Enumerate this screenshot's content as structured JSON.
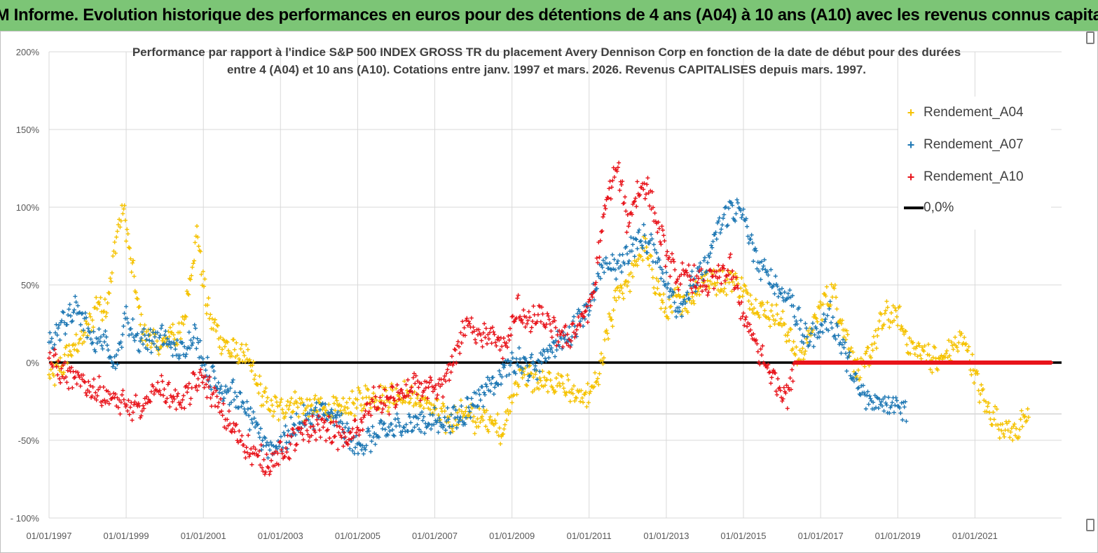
{
  "banner": {
    "title": "ADAM Informe. Evolution historique des performances en euros pour des détentions de 4 ans (A04) à 10 ans (A10) avec les revenus connus capitalisés"
  },
  "chart_data": {
    "type": "scatter",
    "title_line1": "Performance par rapport à l'indice S&P 500 INDEX GROSS TR  du placement Avery Dennison Corp en fonction de la date de début pour des durées",
    "title_line2": "entre 4 (A04) et 10 ans (A10). Cotations entre janv. 1997 et mars. 2026. Revenus CAPITALISES depuis mars. 1997.",
    "x_axis": {
      "type": "date",
      "range": [
        "1997-01-01",
        "2023-04-01"
      ],
      "tick_labels": [
        "01/01/1997",
        "01/01/1999",
        "01/01/2001",
        "01/01/2003",
        "01/01/2005",
        "01/01/2007",
        "01/01/2009",
        "01/01/2011",
        "01/01/2013",
        "01/01/2015",
        "01/01/2017",
        "01/01/2019",
        "01/01/2021"
      ]
    },
    "y_axis": {
      "range": [
        -100,
        200
      ],
      "unit": "%",
      "tick_labels": [
        "200%",
        "150%",
        "100%",
        "50%",
        "0%",
        "-50%",
        " - 100%"
      ]
    },
    "gridlines": true,
    "legend_position": "top-right",
    "series": [
      {
        "name": "Rendement_A04",
        "color": "#f5c200",
        "marker": "+",
        "points": [
          [
            "1997-01-01",
            -10
          ],
          [
            "1997-04-01",
            -6
          ],
          [
            "1997-07-01",
            5
          ],
          [
            "1997-10-01",
            12
          ],
          [
            "1998-01-01",
            20
          ],
          [
            "1998-04-01",
            38
          ],
          [
            "1998-07-01",
            35
          ],
          [
            "1998-10-01",
            80
          ],
          [
            "1998-12-01",
            100
          ],
          [
            "1999-01-01",
            85
          ],
          [
            "1999-03-01",
            60
          ],
          [
            "1999-06-01",
            20
          ],
          [
            "1999-09-01",
            15
          ],
          [
            "1999-12-01",
            8
          ],
          [
            "2000-03-01",
            20
          ],
          [
            "2000-06-01",
            15
          ],
          [
            "2000-09-01",
            55
          ],
          [
            "2000-11-01",
            85
          ],
          [
            "2001-02-01",
            35
          ],
          [
            "2001-05-01",
            20
          ],
          [
            "2001-08-01",
            10
          ],
          [
            "2001-11-01",
            5
          ],
          [
            "2002-02-01",
            5
          ],
          [
            "2002-06-01",
            -15
          ],
          [
            "2002-09-01",
            -28
          ],
          [
            "2003-01-01",
            -30
          ],
          [
            "2003-05-01",
            -25
          ],
          [
            "2003-09-01",
            -30
          ],
          [
            "2004-01-01",
            -28
          ],
          [
            "2004-06-01",
            -32
          ],
          [
            "2004-11-01",
            -28
          ],
          [
            "2005-04-01",
            -22
          ],
          [
            "2005-09-01",
            -22
          ],
          [
            "2006-03-01",
            -20
          ],
          [
            "2006-09-01",
            -25
          ],
          [
            "2007-01-01",
            -30
          ],
          [
            "2007-05-01",
            -38
          ],
          [
            "2007-10-01",
            -32
          ],
          [
            "2008-02-01",
            -38
          ],
          [
            "2008-06-01",
            -35
          ],
          [
            "2008-10-01",
            -44
          ],
          [
            "2009-01-01",
            -25
          ],
          [
            "2009-04-01",
            -5
          ],
          [
            "2009-08-01",
            -12
          ],
          [
            "2010-01-01",
            -15
          ],
          [
            "2010-04-01",
            -12
          ],
          [
            "2010-08-01",
            -20
          ],
          [
            "2010-12-01",
            -25
          ],
          [
            "2011-04-01",
            -10
          ],
          [
            "2011-07-01",
            20
          ],
          [
            "2011-10-01",
            45
          ],
          [
            "2012-02-01",
            55
          ],
          [
            "2012-06-01",
            75
          ],
          [
            "2012-10-01",
            50
          ],
          [
            "2013-01-01",
            30
          ],
          [
            "2013-04-01",
            40
          ],
          [
            "2013-08-01",
            40
          ],
          [
            "2014-01-01",
            55
          ],
          [
            "2014-06-01",
            50
          ],
          [
            "2014-10-01",
            55
          ],
          [
            "2015-01-01",
            45
          ],
          [
            "2015-06-01",
            35
          ],
          [
            "2015-11-01",
            30
          ],
          [
            "2016-03-01",
            20
          ],
          [
            "2016-06-01",
            0
          ],
          [
            "2016-10-01",
            20
          ],
          [
            "2017-02-01",
            40
          ],
          [
            "2017-05-01",
            45
          ],
          [
            "2017-10-01",
            10
          ],
          [
            "2018-01-01",
            -10
          ],
          [
            "2018-05-01",
            10
          ],
          [
            "2018-09-01",
            30
          ],
          [
            "2019-01-01",
            30
          ],
          [
            "2019-05-01",
            10
          ],
          [
            "2019-10-01",
            5
          ],
          [
            "2020-02-01",
            0
          ],
          [
            "2020-06-01",
            10
          ],
          [
            "2020-10-01",
            15
          ],
          [
            "2021-01-01",
            -10
          ],
          [
            "2021-05-01",
            -30
          ],
          [
            "2021-09-01",
            -40
          ],
          [
            "2022-01-01",
            -45
          ],
          [
            "2022-06-01",
            -35
          ]
        ]
      },
      {
        "name": "Rendement_A07",
        "color": "#1f78b4",
        "marker": "+",
        "points": [
          [
            "1997-01-01",
            10
          ],
          [
            "1997-05-01",
            25
          ],
          [
            "1997-10-01",
            35
          ],
          [
            "1998-02-01",
            15
          ],
          [
            "1998-06-01",
            15
          ],
          [
            "1998-10-01",
            0
          ],
          [
            "1999-01-01",
            30
          ],
          [
            "1999-04-01",
            15
          ],
          [
            "1999-08-01",
            15
          ],
          [
            "2000-01-01",
            15
          ],
          [
            "2000-06-01",
            5
          ],
          [
            "2000-10-01",
            20
          ],
          [
            "2001-02-01",
            -5
          ],
          [
            "2001-06-01",
            -15
          ],
          [
            "2001-10-01",
            -20
          ],
          [
            "2002-02-01",
            -30
          ],
          [
            "2002-06-01",
            -45
          ],
          [
            "2002-10-01",
            -55
          ],
          [
            "2003-02-01",
            -50
          ],
          [
            "2003-06-01",
            -40
          ],
          [
            "2003-10-01",
            -35
          ],
          [
            "2004-03-01",
            -32
          ],
          [
            "2004-08-01",
            -40
          ],
          [
            "2004-12-01",
            -55
          ],
          [
            "2005-04-01",
            -50
          ],
          [
            "2005-09-01",
            -45
          ],
          [
            "2006-03-01",
            -40
          ],
          [
            "2006-09-01",
            -38
          ],
          [
            "2007-03-01",
            -38
          ],
          [
            "2007-09-01",
            -35
          ],
          [
            "2008-01-01",
            -25
          ],
          [
            "2008-06-01",
            -15
          ],
          [
            "2008-11-01",
            -5
          ],
          [
            "2009-03-01",
            0
          ],
          [
            "2009-08-01",
            -5
          ],
          [
            "2010-01-01",
            10
          ],
          [
            "2010-06-01",
            15
          ],
          [
            "2010-10-01",
            30
          ],
          [
            "2011-02-01",
            40
          ],
          [
            "2011-06-01",
            65
          ],
          [
            "2011-10-01",
            60
          ],
          [
            "2012-02-01",
            75
          ],
          [
            "2012-06-01",
            80
          ],
          [
            "2012-10-01",
            70
          ],
          [
            "2013-01-01",
            50
          ],
          [
            "2013-05-01",
            35
          ],
          [
            "2013-09-01",
            50
          ],
          [
            "2014-01-01",
            60
          ],
          [
            "2014-05-01",
            85
          ],
          [
            "2014-09-01",
            100
          ],
          [
            "2015-01-01",
            95
          ],
          [
            "2015-05-01",
            65
          ],
          [
            "2015-09-01",
            55
          ],
          [
            "2016-01-01",
            45
          ],
          [
            "2016-04-01",
            40
          ],
          [
            "2016-08-01",
            15
          ],
          [
            "2016-12-01",
            20
          ],
          [
            "2017-04-01",
            30
          ],
          [
            "2017-08-01",
            10
          ],
          [
            "2017-12-01",
            -15
          ],
          [
            "2018-04-01",
            -25
          ],
          [
            "2018-09-01",
            -25
          ],
          [
            "2019-01-01",
            -25
          ],
          [
            "2019-04-01",
            -33
          ]
        ]
      },
      {
        "name": "Rendement_A10",
        "color": "#e8141b",
        "marker": "+",
        "points": [
          [
            "1997-01-01",
            5
          ],
          [
            "1997-04-01",
            -5
          ],
          [
            "1997-08-01",
            -10
          ],
          [
            "1998-01-01",
            -15
          ],
          [
            "1998-06-01",
            -20
          ],
          [
            "1998-10-01",
            -25
          ],
          [
            "1999-02-01",
            -30
          ],
          [
            "1999-06-01",
            -30
          ],
          [
            "1999-10-01",
            -15
          ],
          [
            "2000-02-01",
            -20
          ],
          [
            "2000-06-01",
            -25
          ],
          [
            "2000-10-01",
            -15
          ],
          [
            "2001-01-01",
            -10
          ],
          [
            "2001-05-01",
            -25
          ],
          [
            "2001-09-01",
            -40
          ],
          [
            "2002-01-01",
            -50
          ],
          [
            "2002-05-01",
            -60
          ],
          [
            "2002-09-01",
            -65
          ],
          [
            "2003-01-01",
            -60
          ],
          [
            "2003-05-01",
            -50
          ],
          [
            "2003-09-01",
            -45
          ],
          [
            "2004-02-01",
            -40
          ],
          [
            "2004-06-01",
            -45
          ],
          [
            "2004-10-01",
            -50
          ],
          [
            "2005-02-01",
            -40
          ],
          [
            "2005-06-01",
            -25
          ],
          [
            "2005-10-01",
            -25
          ],
          [
            "2006-03-01",
            -20
          ],
          [
            "2006-08-01",
            -15
          ],
          [
            "2007-01-01",
            -20
          ],
          [
            "2007-05-01",
            -10
          ],
          [
            "2007-08-01",
            10
          ],
          [
            "2007-11-01",
            25
          ],
          [
            "2008-03-01",
            20
          ],
          [
            "2008-07-01",
            15
          ],
          [
            "2008-11-01",
            10
          ],
          [
            "2009-03-01",
            35
          ],
          [
            "2009-06-01",
            25
          ],
          [
            "2009-10-01",
            30
          ],
          [
            "2010-02-01",
            20
          ],
          [
            "2010-06-01",
            15
          ],
          [
            "2010-10-01",
            25
          ],
          [
            "2011-02-01",
            40
          ],
          [
            "2011-04-01",
            70
          ],
          [
            "2011-07-01",
            110
          ],
          [
            "2011-10-01",
            125
          ],
          [
            "2012-01-01",
            90
          ],
          [
            "2012-04-01",
            110
          ],
          [
            "2012-07-01",
            115
          ],
          [
            "2012-10-01",
            90
          ],
          [
            "2013-01-01",
            70
          ],
          [
            "2013-04-01",
            55
          ],
          [
            "2013-08-01",
            55
          ],
          [
            "2014-01-01",
            50
          ],
          [
            "2014-05-01",
            55
          ],
          [
            "2014-09-01",
            60
          ],
          [
            "2015-01-01",
            30
          ],
          [
            "2015-05-01",
            10
          ],
          [
            "2015-09-01",
            -5
          ],
          [
            "2015-12-01",
            -15
          ],
          [
            "2016-03-01",
            -20
          ],
          [
            "2016-05-01",
            0
          ],
          [
            "2022-12-31",
            0
          ]
        ]
      },
      {
        "name": "0,0%",
        "color": "#000000",
        "marker": "line",
        "value": 0
      }
    ]
  }
}
